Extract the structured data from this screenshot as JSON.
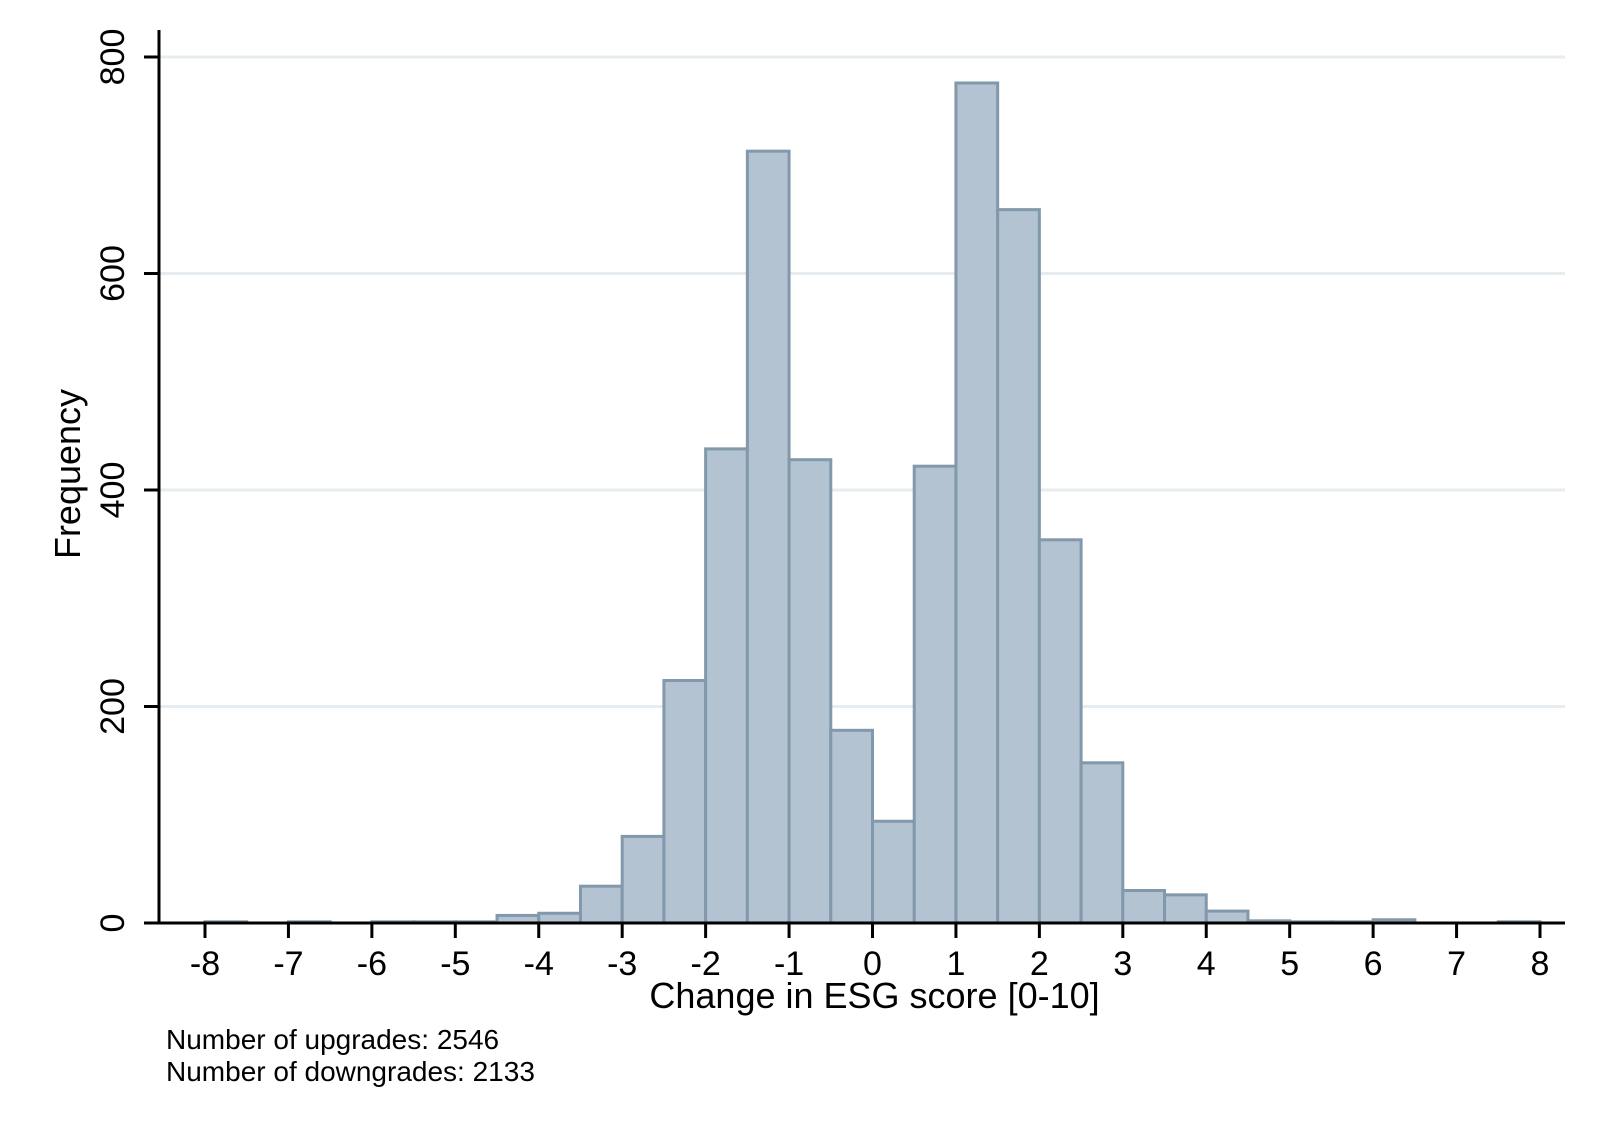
{
  "chart_data": {
    "type": "bar",
    "subtype": "histogram",
    "xlabel": "Change in ESG score [0-10]",
    "ylabel": "Frequency",
    "xlim": [
      -8,
      8
    ],
    "ylim": [
      0,
      800
    ],
    "xticks": [
      -8,
      -7,
      -6,
      -5,
      -4,
      -3,
      -2,
      -1,
      0,
      1,
      2,
      3,
      4,
      5,
      6,
      7,
      8
    ],
    "yticks": [
      0,
      200,
      400,
      600,
      800
    ],
    "grid": "horizontal",
    "bin_width": 0.5,
    "bins": [
      {
        "x0": -8.0,
        "x1": -7.5,
        "count": 1
      },
      {
        "x0": -7.5,
        "x1": -7.0,
        "count": 0
      },
      {
        "x0": -7.0,
        "x1": -6.5,
        "count": 1
      },
      {
        "x0": -6.5,
        "x1": -6.0,
        "count": 0
      },
      {
        "x0": -6.0,
        "x1": -5.5,
        "count": 1
      },
      {
        "x0": -5.5,
        "x1": -5.0,
        "count": 1
      },
      {
        "x0": -5.0,
        "x1": -4.5,
        "count": 1
      },
      {
        "x0": -4.5,
        "x1": -4.0,
        "count": 7
      },
      {
        "x0": -4.0,
        "x1": -3.5,
        "count": 9
      },
      {
        "x0": -3.5,
        "x1": -3.0,
        "count": 34
      },
      {
        "x0": -3.0,
        "x1": -2.5,
        "count": 80
      },
      {
        "x0": -2.5,
        "x1": -2.0,
        "count": 224
      },
      {
        "x0": -2.0,
        "x1": -1.5,
        "count": 438
      },
      {
        "x0": -1.5,
        "x1": -1.0,
        "count": 713
      },
      {
        "x0": -1.0,
        "x1": -0.5,
        "count": 428
      },
      {
        "x0": -0.5,
        "x1": 0.0,
        "count": 178
      },
      {
        "x0": 0.0,
        "x1": 0.5,
        "count": 94
      },
      {
        "x0": 0.5,
        "x1": 1.0,
        "count": 422
      },
      {
        "x0": 1.0,
        "x1": 1.5,
        "count": 776
      },
      {
        "x0": 1.5,
        "x1": 2.0,
        "count": 659
      },
      {
        "x0": 2.0,
        "x1": 2.5,
        "count": 354
      },
      {
        "x0": 2.5,
        "x1": 3.0,
        "count": 148
      },
      {
        "x0": 3.0,
        "x1": 3.5,
        "count": 30
      },
      {
        "x0": 3.5,
        "x1": 4.0,
        "count": 26
      },
      {
        "x0": 4.0,
        "x1": 4.5,
        "count": 11
      },
      {
        "x0": 4.5,
        "x1": 5.0,
        "count": 2
      },
      {
        "x0": 5.0,
        "x1": 5.5,
        "count": 1
      },
      {
        "x0": 5.5,
        "x1": 6.0,
        "count": 1
      },
      {
        "x0": 6.0,
        "x1": 6.5,
        "count": 3
      },
      {
        "x0": 6.5,
        "x1": 7.0,
        "count": 0
      },
      {
        "x0": 7.0,
        "x1": 7.5,
        "count": 0
      },
      {
        "x0": 7.5,
        "x1": 8.0,
        "count": 1
      }
    ],
    "colors": {
      "bar_fill": "#b3c3d1",
      "bar_stroke": "#8298ab",
      "grid": "#e6ecef",
      "axis": "#000000"
    }
  },
  "notes": {
    "upgrades": "Number of upgrades:  2546",
    "downgrades": "Number of downgrades:  2133"
  }
}
